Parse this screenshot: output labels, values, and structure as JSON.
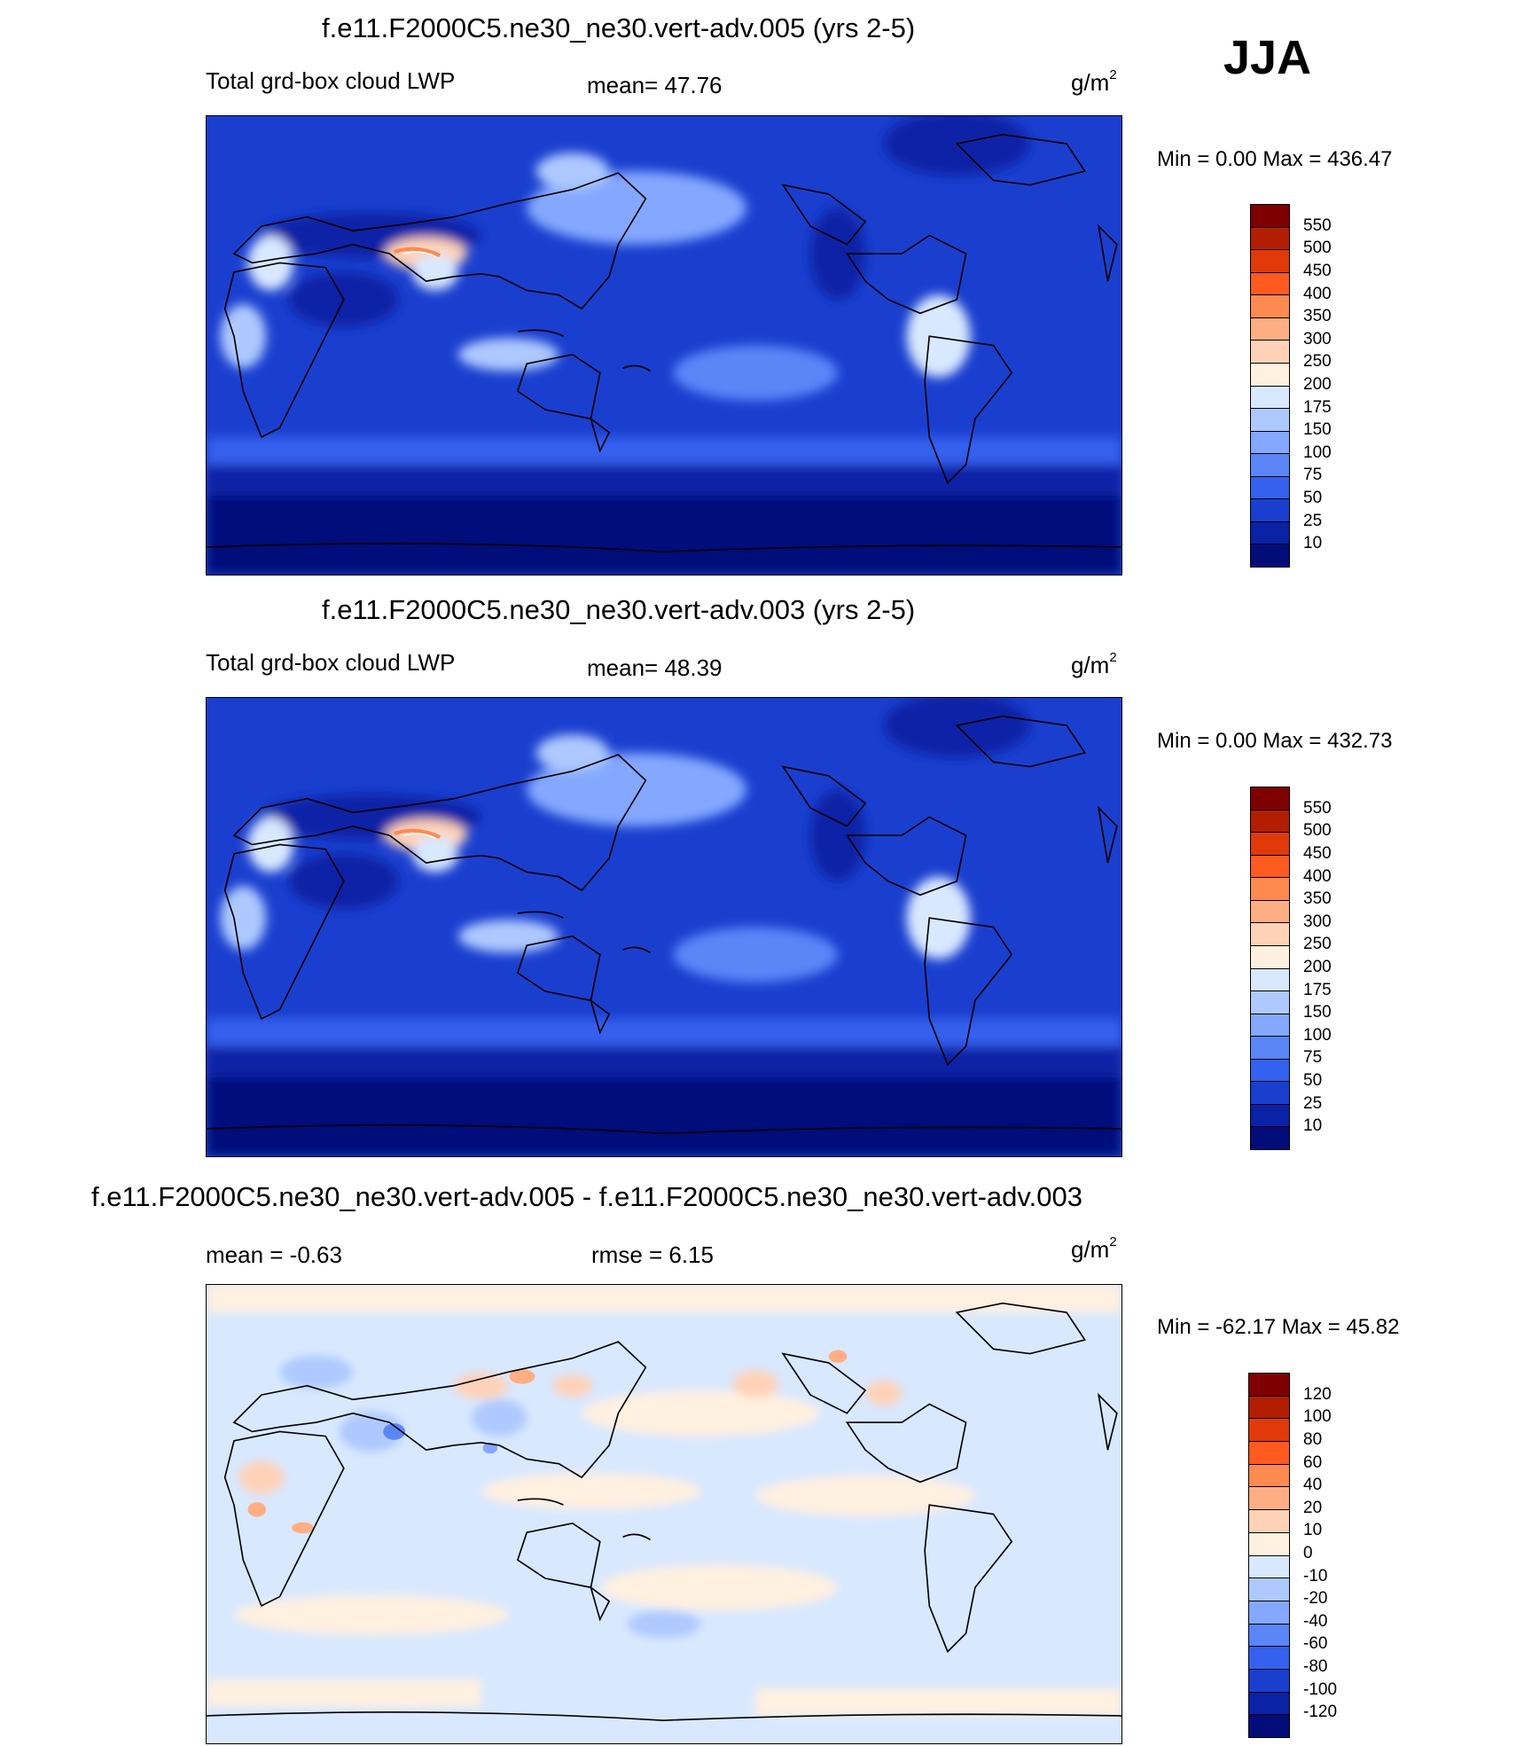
{
  "season": "JJA",
  "panels": [
    {
      "title": "f.e11.F2000C5.ne30_ne30.vert-adv.005 (yrs 2-5)",
      "left_label": "Total grd-box cloud LWP",
      "center_label": "mean=  47.76",
      "units": "g/m",
      "units_sup": "2",
      "minmax": "Min =    0.00 Max = 436.47",
      "colorbar": {
        "labels": [
          "550",
          "500",
          "450",
          "400",
          "350",
          "300",
          "250",
          "200",
          "175",
          "150",
          "100",
          "75",
          "50",
          "25",
          "10"
        ],
        "colors": [
          "#7f0000",
          "#b31e00",
          "#e03a0a",
          "#ff5a1f",
          "#ff8a4f",
          "#ffae84",
          "#ffd2b8",
          "#fff0e0",
          "#d8e8ff",
          "#aec9ff",
          "#84a8ff",
          "#5a86f8",
          "#3461ee",
          "#1a3fcf",
          "#0a22a6",
          "#020d7a"
        ]
      }
    },
    {
      "title": "f.e11.F2000C5.ne30_ne30.vert-adv.003 (yrs 2-5)",
      "left_label": "Total grd-box cloud LWP",
      "center_label": "mean=  48.39",
      "units": "g/m",
      "units_sup": "2",
      "minmax": "Min =    0.00 Max = 432.73",
      "colorbar": {
        "labels": [
          "550",
          "500",
          "450",
          "400",
          "350",
          "300",
          "250",
          "200",
          "175",
          "150",
          "100",
          "75",
          "50",
          "25",
          "10"
        ],
        "colors": [
          "#7f0000",
          "#b31e00",
          "#e03a0a",
          "#ff5a1f",
          "#ff8a4f",
          "#ffae84",
          "#ffd2b8",
          "#fff0e0",
          "#d8e8ff",
          "#aec9ff",
          "#84a8ff",
          "#5a86f8",
          "#3461ee",
          "#1a3fcf",
          "#0a22a6",
          "#020d7a"
        ]
      }
    },
    {
      "title": "f.e11.F2000C5.ne30_ne30.vert-adv.005 - f.e11.F2000C5.ne30_ne30.vert-adv.003",
      "left_label": "mean =  -0.63",
      "center_label": "rmse =   6.15",
      "units": "g/m",
      "units_sup": "2",
      "minmax": "Min = -62.17 Max =  45.82",
      "colorbar": {
        "labels": [
          "120",
          "100",
          "80",
          "60",
          "40",
          "20",
          "10",
          "0",
          "-10",
          "-20",
          "-40",
          "-60",
          "-80",
          "-100",
          "-120"
        ],
        "colors": [
          "#7f0000",
          "#b31e00",
          "#e03a0a",
          "#ff5a1f",
          "#ff8a4f",
          "#ffae84",
          "#ffd2b8",
          "#fff0e0",
          "#d8e8ff",
          "#aec9ff",
          "#84a8ff",
          "#5a86f8",
          "#3461ee",
          "#1a3fcf",
          "#0a22a6",
          "#020d7a"
        ]
      }
    }
  ]
}
